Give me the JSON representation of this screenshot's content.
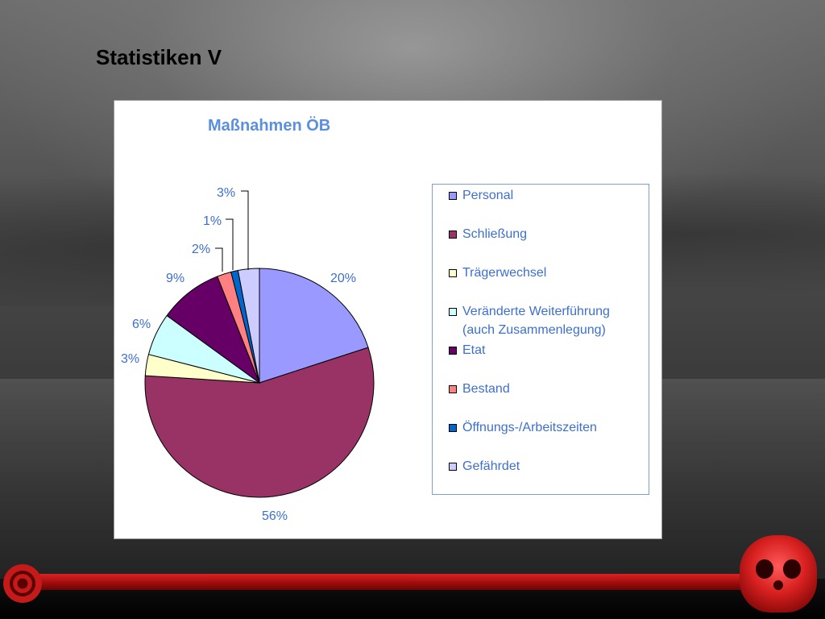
{
  "slide": {
    "title": "Statistiken V"
  },
  "chart_data": {
    "type": "pie",
    "title": "Maßnahmen ÖB",
    "categories": [
      "Personal",
      "Schließung",
      "Trägerwechsel",
      "Veränderte Weiterführung (auch Zusammenlegung)",
      "Etat",
      "Bestand",
      "Öffnungs-/Arbeitszeiten",
      "Gefährdet"
    ],
    "values": [
      20,
      56,
      3,
      6,
      9,
      2,
      1,
      3
    ],
    "labels": [
      "20%",
      "56%",
      "3%",
      "6%",
      "9%",
      "2%",
      "1%",
      "3%"
    ],
    "colors": [
      "#9999ff",
      "#993366",
      "#ffffcc",
      "#ccffff",
      "#660066",
      "#ff8080",
      "#0066cc",
      "#ccccff"
    ],
    "legend_position": "right"
  },
  "legend": {
    "items": [
      {
        "label": "Personal"
      },
      {
        "label": "Schließung"
      },
      {
        "label": "Trägerwechsel"
      },
      {
        "label": "Veränderte Weiterführung\n(auch Zusammenlegung)"
      },
      {
        "label": "Etat"
      },
      {
        "label": "Bestand"
      },
      {
        "label": "Öffnungs-/Arbeitszeiten"
      },
      {
        "label": "Gefährdet"
      }
    ]
  }
}
